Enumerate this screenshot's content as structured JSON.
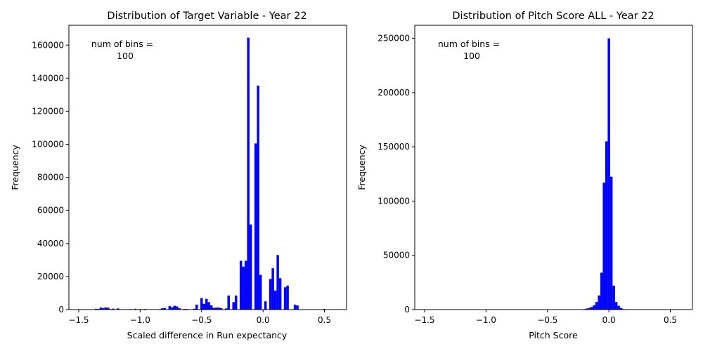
{
  "chart_data": [
    {
      "type": "bar",
      "title": "Distribution of Target Variable - Year 22",
      "xlabel": "Scaled difference in Run expectancy",
      "ylabel": "Frequency",
      "annotation": [
        "num of bins =",
        "100"
      ],
      "xlim": [
        -1.58,
        0.68
      ],
      "ylim": [
        0,
        172000
      ],
      "xticks": [
        -1.5,
        -1.0,
        -0.5,
        0.0,
        0.5
      ],
      "xtick_labels": [
        "−1.5",
        "−1.0",
        "−0.5",
        "0.0",
        "0.5"
      ],
      "yticks": [
        0,
        20000,
        40000,
        60000,
        80000,
        100000,
        120000,
        140000,
        160000
      ],
      "ytick_labels": [
        "0",
        "20000",
        "40000",
        "60000",
        "80000",
        "100000",
        "120000",
        "140000",
        "160000"
      ],
      "bar_color": "#0000ff",
      "grid": false,
      "bin_width": 0.02,
      "bins": [
        {
          "x": -1.36,
          "y": 500
        },
        {
          "x": -1.34,
          "y": 400
        },
        {
          "x": -1.32,
          "y": 1200
        },
        {
          "x": -1.3,
          "y": 900
        },
        {
          "x": -1.28,
          "y": 1300
        },
        {
          "x": -1.26,
          "y": 1100
        },
        {
          "x": -1.24,
          "y": 300
        },
        {
          "x": -1.22,
          "y": 600
        },
        {
          "x": -1.18,
          "y": 700
        },
        {
          "x": -1.08,
          "y": 300
        },
        {
          "x": -1.04,
          "y": 500
        },
        {
          "x": -1.0,
          "y": 300
        },
        {
          "x": -0.96,
          "y": 400
        },
        {
          "x": -0.84,
          "y": 300
        },
        {
          "x": -0.82,
          "y": 800
        },
        {
          "x": -0.8,
          "y": 1000
        },
        {
          "x": -0.76,
          "y": 2100
        },
        {
          "x": -0.74,
          "y": 1400
        },
        {
          "x": -0.72,
          "y": 2300
        },
        {
          "x": -0.7,
          "y": 1900
        },
        {
          "x": -0.68,
          "y": 800
        },
        {
          "x": -0.64,
          "y": 400
        },
        {
          "x": -0.62,
          "y": 400
        },
        {
          "x": -0.56,
          "y": 500
        },
        {
          "x": -0.54,
          "y": 3000
        },
        {
          "x": -0.5,
          "y": 7000
        },
        {
          "x": -0.48,
          "y": 3500
        },
        {
          "x": -0.46,
          "y": 6500
        },
        {
          "x": -0.44,
          "y": 4500
        },
        {
          "x": -0.42,
          "y": 2500
        },
        {
          "x": -0.4,
          "y": 1000
        },
        {
          "x": -0.38,
          "y": 1200
        },
        {
          "x": -0.36,
          "y": 1200
        },
        {
          "x": -0.34,
          "y": 900
        },
        {
          "x": -0.3,
          "y": 700
        },
        {
          "x": -0.28,
          "y": 8500
        },
        {
          "x": -0.24,
          "y": 4500
        },
        {
          "x": -0.22,
          "y": 8500
        },
        {
          "x": -0.18,
          "y": 29500
        },
        {
          "x": -0.16,
          "y": 26000
        },
        {
          "x": -0.14,
          "y": 29500
        },
        {
          "x": -0.12,
          "y": 164500
        },
        {
          "x": -0.1,
          "y": 51500
        },
        {
          "x": -0.06,
          "y": 100500
        },
        {
          "x": -0.04,
          "y": 135500
        },
        {
          "x": -0.02,
          "y": 21000
        },
        {
          "x": 0.02,
          "y": 5000
        },
        {
          "x": 0.06,
          "y": 18500
        },
        {
          "x": 0.08,
          "y": 25000
        },
        {
          "x": 0.1,
          "y": 11500
        },
        {
          "x": 0.12,
          "y": 33000
        },
        {
          "x": 0.14,
          "y": 19000
        },
        {
          "x": 0.18,
          "y": 13500
        },
        {
          "x": 0.2,
          "y": 14500
        },
        {
          "x": 0.26,
          "y": 3000
        },
        {
          "x": 0.28,
          "y": 2500
        },
        {
          "x": 0.5,
          "y": 400
        }
      ]
    },
    {
      "type": "bar",
      "title": "Distribution of Pitch Score ALL - Year 22",
      "xlabel": "Pitch Score",
      "ylabel": "Frequency",
      "annotation": [
        "num of bins =",
        "100"
      ],
      "xlim": [
        -1.58,
        0.68
      ],
      "ylim": [
        0,
        262000
      ],
      "xticks": [
        -1.5,
        -1.0,
        -0.5,
        0.0,
        0.5
      ],
      "xtick_labels": [
        "−1.5",
        "−1.0",
        "−0.5",
        "0.0",
        "0.5"
      ],
      "yticks": [
        0,
        50000,
        100000,
        150000,
        200000,
        250000
      ],
      "ytick_labels": [
        "0",
        "50000",
        "100000",
        "150000",
        "200000",
        "250000"
      ],
      "bar_color": "#0000ff",
      "grid": false,
      "bin_width": 0.02,
      "bins": [
        {
          "x": -0.2,
          "y": 500
        },
        {
          "x": -0.18,
          "y": 1000
        },
        {
          "x": -0.16,
          "y": 1500
        },
        {
          "x": -0.14,
          "y": 2500
        },
        {
          "x": -0.12,
          "y": 4000
        },
        {
          "x": -0.1,
          "y": 7000
        },
        {
          "x": -0.08,
          "y": 13000
        },
        {
          "x": -0.06,
          "y": 34000
        },
        {
          "x": -0.04,
          "y": 117000
        },
        {
          "x": -0.02,
          "y": 155000
        },
        {
          "x": 0.0,
          "y": 250000
        },
        {
          "x": 0.02,
          "y": 122500
        },
        {
          "x": 0.04,
          "y": 22000
        },
        {
          "x": 0.06,
          "y": 7000
        },
        {
          "x": 0.08,
          "y": 3500
        },
        {
          "x": 0.1,
          "y": 1500
        },
        {
          "x": 0.12,
          "y": 500
        }
      ]
    }
  ]
}
